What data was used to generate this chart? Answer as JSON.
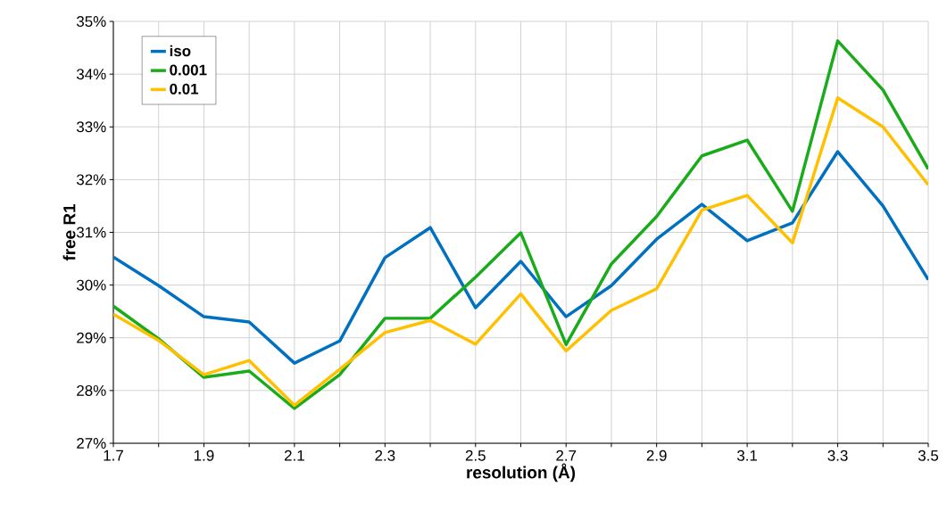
{
  "chart_data": {
    "type": "line",
    "xlabel": "resolution (Å)",
    "ylabel": "free R1",
    "x": [
      1.7,
      1.8,
      1.9,
      2.0,
      2.1,
      2.2,
      2.3,
      2.4,
      2.5,
      2.6,
      2.7,
      2.8,
      2.9,
      3.0,
      3.1,
      3.2,
      3.3,
      3.4,
      3.5
    ],
    "series": [
      {
        "name": "iso",
        "color": "#0070c0",
        "values": [
          30.53,
          29.99,
          29.4,
          29.3,
          28.52,
          28.94,
          30.52,
          31.09,
          29.57,
          30.45,
          29.4,
          29.99,
          30.87,
          31.53,
          30.84,
          31.18,
          32.53,
          31.5,
          30.1
        ]
      },
      {
        "name": "0.001",
        "color": "#1aab1a",
        "values": [
          29.6,
          28.98,
          28.25,
          28.37,
          27.66,
          28.3,
          29.37,
          29.37,
          30.15,
          30.99,
          28.87,
          30.4,
          31.3,
          32.45,
          32.75,
          31.4,
          34.63,
          33.7,
          32.2
        ]
      },
      {
        "name": "0.01",
        "color": "#ffc000",
        "values": [
          29.45,
          28.95,
          28.3,
          28.57,
          27.72,
          28.4,
          29.1,
          29.33,
          28.88,
          29.83,
          28.75,
          29.52,
          29.93,
          31.42,
          31.7,
          30.8,
          33.55,
          33.0,
          31.9
        ]
      }
    ],
    "xlim": [
      1.7,
      3.5
    ],
    "ylim": [
      27,
      35
    ],
    "xticks": [
      1.7,
      {
        "value": 1.8,
        "label": null
      },
      1.9,
      {
        "value": 2.0,
        "label": null
      },
      2.1,
      {
        "value": 2.2,
        "label": null
      },
      2.3,
      {
        "value": 2.4,
        "label": null
      },
      2.5,
      {
        "value": 2.6,
        "label": null
      },
      2.7,
      {
        "value": 2.8,
        "label": null
      },
      2.9,
      {
        "value": 3.0,
        "label": null
      },
      3.1,
      {
        "value": 3.2,
        "label": null
      },
      3.3,
      {
        "value": 3.4,
        "label": null
      },
      3.5
    ],
    "yticks": [
      {
        "value": 27,
        "label": "27%"
      },
      {
        "value": 28,
        "label": "28%"
      },
      {
        "value": 29,
        "label": "29%"
      },
      {
        "value": 30,
        "label": "30%"
      },
      {
        "value": 31,
        "label": "31%"
      },
      {
        "value": 32,
        "label": "32%"
      },
      {
        "value": 33,
        "label": "33%"
      },
      {
        "value": 34,
        "label": "34%"
      },
      {
        "value": 35,
        "label": "35%"
      }
    ],
    "grid": true,
    "legend": "top left"
  }
}
